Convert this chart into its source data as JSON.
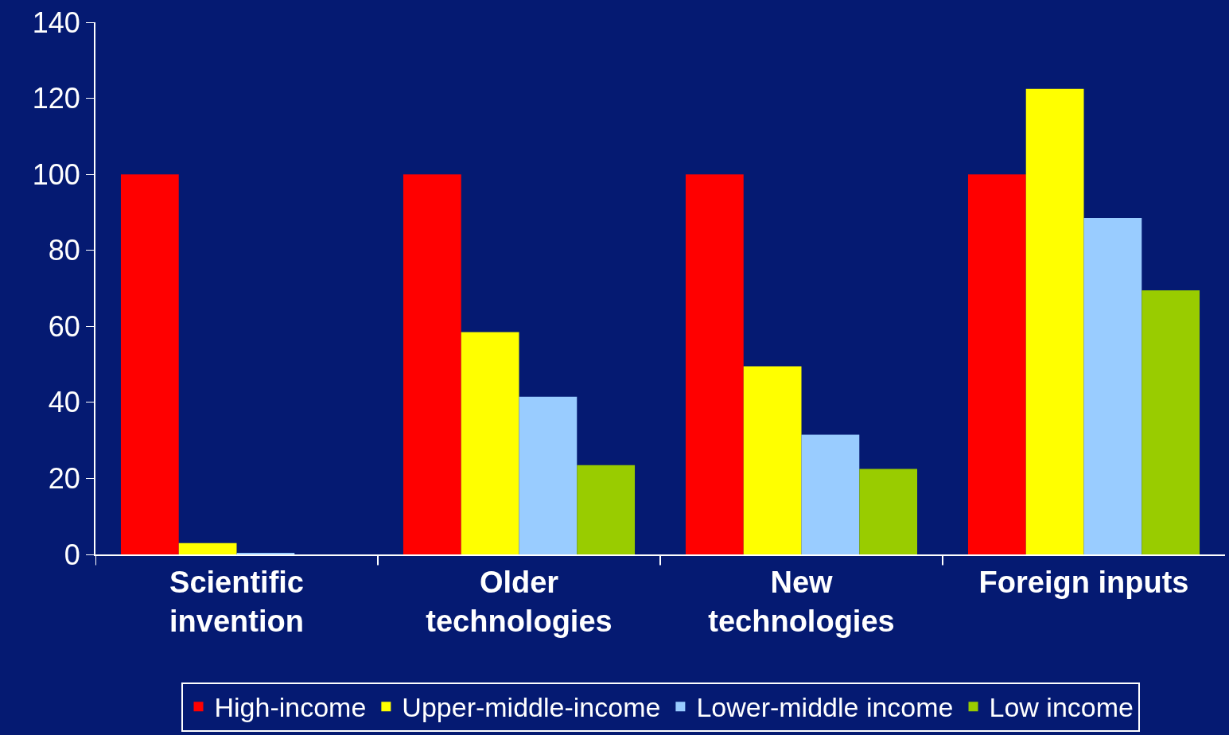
{
  "chart_data": {
    "type": "bar",
    "categories": [
      "Scientific\ninvention",
      "Older\ntechnologies",
      "New\ntechnologies",
      "Foreign inputs"
    ],
    "series": [
      {
        "name": "High-income",
        "color": "#ff0000",
        "values": [
          100,
          100,
          100,
          100
        ]
      },
      {
        "name": "Upper-middle-income",
        "color": "#ffff00",
        "values": [
          3,
          58.5,
          49.5,
          122.5
        ]
      },
      {
        "name": "Lower-middle income",
        "color": "#99ccff",
        "values": [
          0.3,
          41.5,
          31.5,
          88.5
        ]
      },
      {
        "name": "Low income",
        "color": "#99cc00",
        "values": [
          0,
          23.5,
          22.5,
          69.5
        ]
      }
    ],
    "ylim": [
      0,
      140
    ],
    "yticks": [
      0,
      20,
      40,
      60,
      80,
      100,
      120,
      140
    ],
    "grid": false,
    "legend": "bottom"
  }
}
